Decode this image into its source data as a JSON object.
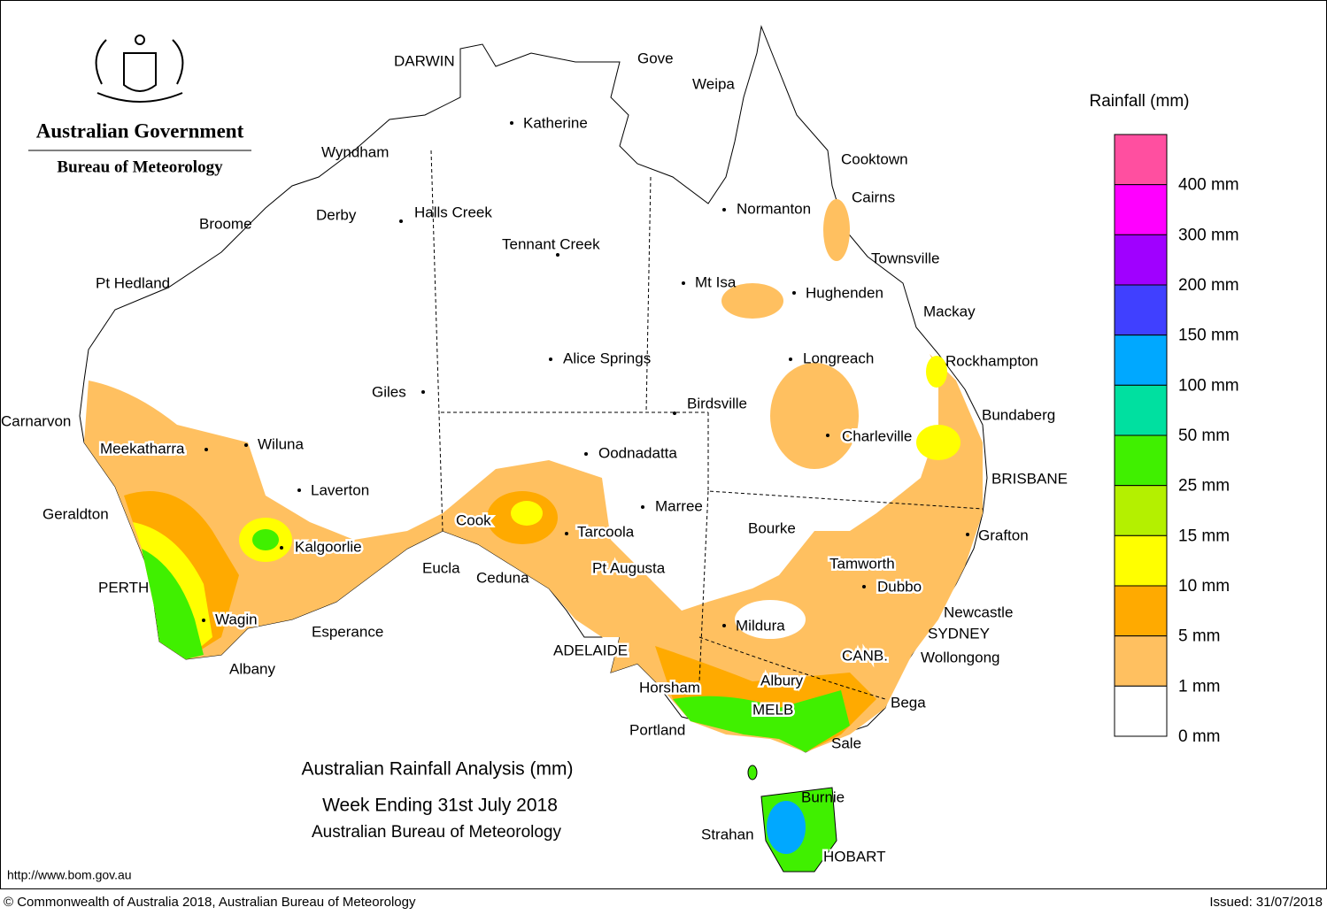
{
  "header": {
    "government": "Australian Government",
    "bureau": "Bureau of Meteorology"
  },
  "title": {
    "line1": "Australian Rainfall Analysis (mm)",
    "line2": "Week Ending 31st July 2018",
    "line3": "Australian Bureau of Meteorology"
  },
  "legend": {
    "title": "Rainfall (mm)",
    "items": [
      {
        "label": "400 mm",
        "color": "#ff4fa0"
      },
      {
        "label": "300 mm",
        "color": "#ff00ff"
      },
      {
        "label": "200 mm",
        "color": "#a000ff"
      },
      {
        "label": "150 mm",
        "color": "#4040ff"
      },
      {
        "label": "100 mm",
        "color": "#00a8ff"
      },
      {
        "label": "50 mm",
        "color": "#00e0a0"
      },
      {
        "label": "25 mm",
        "color": "#40f000"
      },
      {
        "label": "15 mm",
        "color": "#b4f000"
      },
      {
        "label": "10 mm",
        "color": "#ffff00"
      },
      {
        "label": "5 mm",
        "color": "#ffaa00"
      },
      {
        "label": "1 mm",
        "color": "#ffc060"
      },
      {
        "label": "0 mm",
        "color": "#ffffff"
      }
    ]
  },
  "cities": [
    "DARWIN",
    "Gove",
    "Weipa",
    "Katherine",
    "Wyndham",
    "Cooktown",
    "Cairns",
    "Broome",
    "Derby",
    "Halls Creek",
    "Normanton",
    "Tennant Creek",
    "Townsville",
    "Pt Hedland",
    "Mt Isa",
    "Hughenden",
    "Mackay",
    "Alice Springs",
    "Longreach",
    "Rockhampton",
    "Giles",
    "Birdsville",
    "Bundaberg",
    "Carnarvon",
    "Charleville",
    "Meekatharra",
    "Wiluna",
    "Oodnadatta",
    "BRISBANE",
    "Laverton",
    "Marree",
    "Geraldton",
    "Cook",
    "Bourke",
    "Tarcoola",
    "Grafton",
    "Kalgoorlie",
    "Tamworth",
    "Eucla",
    "Pt Augusta",
    "Ceduna",
    "PERTH",
    "Dubbo",
    "Newcastle",
    "Wagin",
    "Mildura",
    "Esperance",
    "SYDNEY",
    "ADELAIDE",
    "CANB.",
    "Wollongong",
    "Albany",
    "Horsham",
    "Albury",
    "Bega",
    "MELB",
    "Portland",
    "Sale",
    "Burnie",
    "Strahan",
    "HOBART"
  ],
  "footer": {
    "url": "http://www.bom.gov.au",
    "copyright": "© Commonwealth of Australia 2018, Australian Bureau of Meteorology",
    "issued": "Issued: 31/07/2018"
  }
}
